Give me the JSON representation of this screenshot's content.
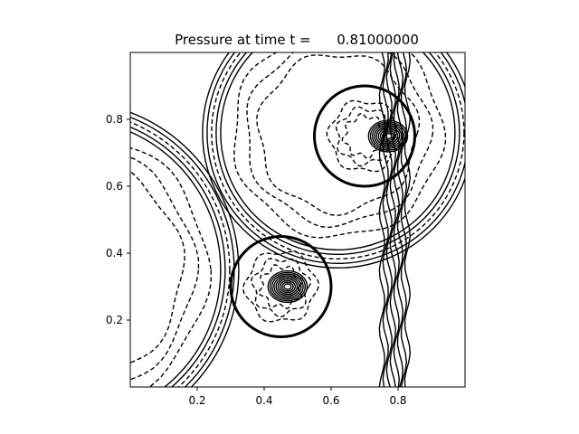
{
  "chart_data": {
    "type": "contour",
    "title": "Pressure at time t =      0.81000000",
    "xlabel": "",
    "ylabel": "",
    "xlim": [
      0,
      1
    ],
    "ylim": [
      0,
      1
    ],
    "xticks": [
      0.2,
      0.4,
      0.6,
      0.8
    ],
    "yticks": [
      0.2,
      0.4,
      0.6,
      0.8
    ],
    "xtick_labels": [
      "0.2",
      "0.4",
      "0.6",
      "0.8"
    ],
    "ytick_labels": [
      "0.2",
      "0.4",
      "0.6",
      "0.8"
    ],
    "grid": false,
    "legend": "none",
    "line_color": "#000000",
    "contour_style": "solid lines positive, dashed lines negative",
    "features": [
      {
        "kind": "circle",
        "cx": 0.7,
        "cy": 0.75,
        "r": 0.15,
        "note": "thick outline circle, upper right"
      },
      {
        "kind": "circle",
        "cx": 0.45,
        "cy": 0.3,
        "r": 0.15,
        "note": "thick outline circle, lower middle"
      },
      {
        "kind": "cluster",
        "cx": 0.47,
        "cy": 0.3,
        "note": "dense closed contours inside lower circle"
      },
      {
        "kind": "cluster",
        "cx": 0.77,
        "cy": 0.75,
        "note": "dense contours at right edge of upper circle"
      },
      {
        "kind": "arc_front",
        "cx": 0.62,
        "cy": 0.76,
        "r": 0.35,
        "note": "expanding wave front around upper circle"
      },
      {
        "kind": "arc_front",
        "cx": -0.18,
        "cy": 0.35,
        "r": 0.45,
        "note": "large wave front from left"
      },
      {
        "kind": "vertical_band",
        "x": 0.79,
        "note": "vertical band of contours near x=0.8"
      }
    ]
  }
}
